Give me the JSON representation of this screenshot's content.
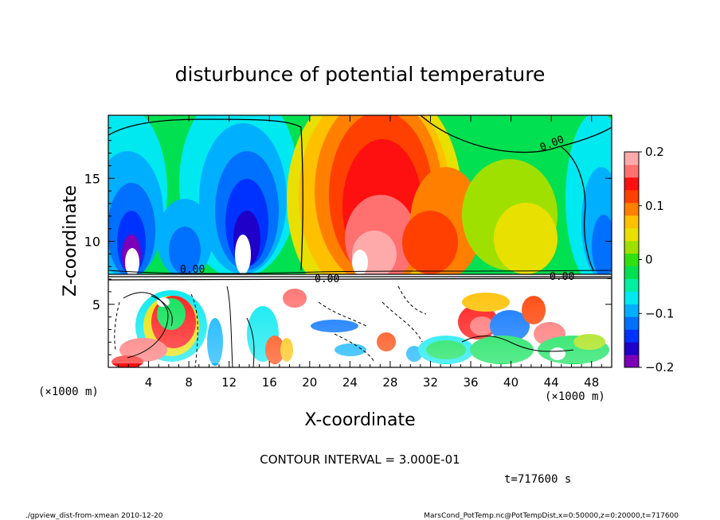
{
  "chart_data": {
    "type": "heatmap",
    "title": "disturbunce of potential temperature",
    "xlabel": "X-coordinate",
    "ylabel": "Z-coordinate",
    "x_unit": "(×1000 m)",
    "y_unit": "(×1000 m)",
    "xlim": [
      0,
      50
    ],
    "ylim": [
      0,
      20
    ],
    "x_ticks": [
      4,
      8,
      12,
      16,
      20,
      24,
      28,
      32,
      36,
      40,
      44,
      48
    ],
    "y_ticks": [
      5,
      10,
      15
    ],
    "colorbar": {
      "min": -0.2,
      "max": 0.2,
      "tick_values": [
        -0.2,
        -0.1,
        0,
        0.1,
        0.2
      ],
      "tick_labels": [
        "−0.2",
        "−0.1",
        "0",
        "0.1",
        "0.2"
      ],
      "colors": [
        "#7b00b8",
        "#1e00c8",
        "#0032ff",
        "#0070ff",
        "#00b0ff",
        "#00e8f0",
        "#00f0a0",
        "#00e050",
        "#30e010",
        "#a0e000",
        "#e8e000",
        "#ffc000",
        "#ff8000",
        "#ff4000",
        "#ff1010",
        "#ff7070",
        "#ffaaaa"
      ]
    },
    "contour_labels": [
      "0.00",
      "0.00",
      "0.00",
      "0.00"
    ],
    "grid": false,
    "colorbar_placement": "right"
  },
  "annotations": {
    "contour_interval": "CONTOUR INTERVAL = 3.000E-01",
    "time": "t=717600 s",
    "footer_left": "./gpview_dist-from-xmean  2010-12-20",
    "footer_right": "MarsCond_PotTemp.nc@PotTempDist,x=0:50000,z=0:20000,t=717600"
  }
}
